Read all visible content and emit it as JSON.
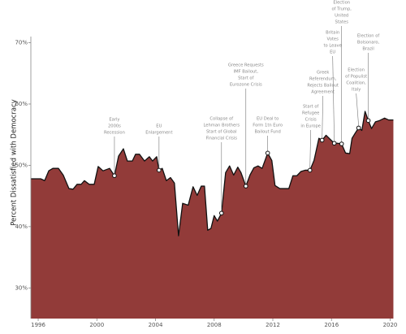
{
  "chart_data": {
    "type": "area",
    "ylabel": "Percent Dissatisfied with Democracy",
    "color": "#923b39",
    "line_color": "#111111",
    "x": [
      1995.5,
      1996.17,
      1996.44,
      1996.72,
      1997.0,
      1997.38,
      1997.71,
      1998.1,
      1998.38,
      1998.65,
      1998.93,
      1999.15,
      1999.48,
      1999.82,
      2000.09,
      2000.42,
      2000.87,
      2001.2,
      2001.48,
      2001.81,
      2002.08,
      2002.42,
      2002.64,
      2002.91,
      2003.25,
      2003.58,
      2003.8,
      2004.08,
      2004.24,
      2004.46,
      2004.74,
      2005.02,
      2005.29,
      2005.57,
      2005.85,
      2006.23,
      2006.56,
      2006.84,
      2007.12,
      2007.34,
      2007.56,
      2007.78,
      2008.0,
      2008.22,
      2008.5,
      2008.78,
      2009.05,
      2009.33,
      2009.61,
      2009.83,
      2010.16,
      2010.44,
      2010.71,
      2010.99,
      2011.27,
      2011.65,
      2011.93,
      2012.15,
      2012.48,
      2012.76,
      2013.09,
      2013.37,
      2013.64,
      2013.92,
      2014.2,
      2014.53,
      2014.81,
      2015.14,
      2015.36,
      2015.63,
      2015.97,
      2016.19,
      2016.41,
      2016.69,
      2016.96,
      2017.24,
      2017.4,
      2017.63,
      2017.85,
      2018.07,
      2018.29,
      2018.51,
      2018.73,
      2019.0,
      2019.28,
      2019.62,
      2019.89,
      2020.22
    ],
    "values": [
      47.8,
      47.8,
      47.5,
      49.1,
      49.5,
      49.5,
      48.4,
      46.2,
      46.1,
      46.9,
      46.9,
      47.5,
      46.9,
      46.9,
      49.8,
      49.1,
      49.5,
      48.3,
      51.5,
      52.7,
      50.7,
      50.7,
      51.8,
      51.8,
      50.7,
      51.4,
      50.7,
      51.4,
      49.2,
      49.5,
      47.5,
      48.0,
      47.1,
      38.5,
      43.8,
      43.5,
      46.5,
      45.1,
      46.6,
      46.6,
      39.4,
      39.7,
      41.8,
      40.9,
      42.2,
      48.8,
      49.9,
      48.4,
      49.7,
      48.8,
      46.6,
      48.4,
      49.6,
      49.9,
      49.5,
      52.0,
      50.8,
      46.7,
      46.2,
      46.2,
      46.2,
      48.3,
      48.3,
      49.0,
      49.2,
      49.2,
      50.8,
      54.4,
      54.1,
      54.9,
      54.1,
      53.6,
      53.6,
      53.5,
      52.0,
      51.9,
      54.4,
      55.3,
      56.1,
      55.7,
      58.8,
      57.3,
      56.0,
      57.1,
      57.3,
      57.7,
      57.4,
      57.4
    ],
    "xlim": [
      1995.5,
      2020.25
    ],
    "ylim": [
      25,
      71
    ],
    "xticks": [
      1996,
      2000,
      2004,
      2008,
      2012,
      2016,
      2020
    ],
    "yticks": [
      {
        "value": 30,
        "label": "30%"
      },
      {
        "value": 40,
        "label": "40%"
      },
      {
        "value": 50,
        "label": "50%"
      },
      {
        "value": 60,
        "label": "60%"
      },
      {
        "value": 70,
        "label": "70%"
      }
    ],
    "annotations": [
      {
        "text": [
          "Early",
          "2000s",
          "Recession"
        ],
        "x": 2001.2,
        "y": 48.3
      },
      {
        "text": [
          "EU",
          "Enlargement"
        ],
        "x": 2004.24,
        "y": 49.2
      },
      {
        "text": [
          "Collapse of",
          "Lehman Brothers",
          "Start of Global",
          "Financial Crisis"
        ],
        "x": 2008.5,
        "y": 42.2
      },
      {
        "text": [
          "Greece Requests",
          "IMF Bailout,",
          "Start of",
          "Eurozone Crisis"
        ],
        "x": 2010.16,
        "y": 46.6
      },
      {
        "text": [
          "EU Deal to",
          "Form 1tn Euro",
          "Bailout Fund"
        ],
        "x": 2011.65,
        "y": 52.0
      },
      {
        "text": [
          "Start of",
          "Refugee",
          "Crisis",
          "in Europe"
        ],
        "x": 2014.53,
        "y": 49.2
      },
      {
        "text": [
          "Greek",
          "Referendum,",
          "Rejects Bailout",
          "Agreement"
        ],
        "x": 2015.36,
        "y": 54.1
      },
      {
        "text": [
          "Britain",
          "Votes",
          "to Leave",
          "EU"
        ],
        "x": 2016.19,
        "y": 53.6
      },
      {
        "text": [
          "Election",
          "of Trump,",
          "United",
          "States"
        ],
        "x": 2016.69,
        "y": 53.5
      },
      {
        "text": [
          "Election",
          "of Populist",
          "Coalition,",
          "Italy"
        ],
        "x": 2017.85,
        "y": 56.1
      },
      {
        "text": [
          "Election of",
          "Bolsonaro,",
          "Brazil"
        ],
        "x": 2018.51,
        "y": 57.3
      }
    ]
  }
}
